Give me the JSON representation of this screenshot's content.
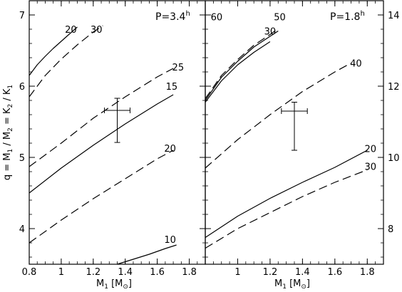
{
  "chart_data": [
    {
      "type": "line",
      "panel": "left",
      "period_label": "P=3.4",
      "period_sup": "h",
      "xlabel": {
        "main": "M",
        "sub": "1",
        "bracket_open": " [M",
        "bracket_sub": "⊙",
        "bracket_close": "]"
      },
      "ylabel": {
        "parts": [
          "q = M",
          "1",
          " / M",
          "2",
          " = K",
          "2",
          " / K",
          "1"
        ]
      },
      "xlim": [
        0.8,
        1.9
      ],
      "ylim": [
        3.5,
        7.2
      ],
      "xticks": [
        "0.8",
        "1",
        "1.2",
        "1.4",
        "1.6",
        "1.8"
      ],
      "xtick_values": [
        0.8,
        1.0,
        1.2,
        1.4,
        1.6,
        1.8
      ],
      "yticks": [
        "4",
        "5",
        "6",
        "7"
      ],
      "ytick_values": [
        4,
        5,
        6,
        7
      ],
      "series": [
        {
          "name": "20",
          "style": "solid",
          "x": [
            0.8,
            0.85,
            0.9,
            0.95,
            1.0,
            1.05,
            1.1
          ],
          "y": [
            6.15,
            6.3,
            6.42,
            6.53,
            6.63,
            6.73,
            6.83
          ]
        },
        {
          "name": "30",
          "style": "dashed",
          "x": [
            0.8,
            0.9,
            1.0,
            1.1,
            1.2,
            1.26
          ],
          "y": [
            5.85,
            6.15,
            6.38,
            6.58,
            6.76,
            6.85
          ]
        },
        {
          "name": "25",
          "style": "dashed",
          "x": [
            0.8,
            1.0,
            1.2,
            1.4,
            1.6,
            1.7
          ],
          "y": [
            4.87,
            5.2,
            5.55,
            5.85,
            6.13,
            6.25
          ]
        },
        {
          "name": "15",
          "style": "solid",
          "x": [
            0.8,
            1.0,
            1.2,
            1.4,
            1.6,
            1.7
          ],
          "y": [
            4.5,
            4.85,
            5.17,
            5.47,
            5.75,
            5.88
          ]
        },
        {
          "name": "20",
          "style": "dashed",
          "x": [
            0.8,
            1.0,
            1.2,
            1.4,
            1.6,
            1.7
          ],
          "y": [
            3.8,
            4.12,
            4.42,
            4.7,
            4.98,
            5.1
          ]
        },
        {
          "name": "10",
          "style": "solid",
          "x": [
            1.35,
            1.45,
            1.55,
            1.65,
            1.72
          ],
          "y": [
            3.5,
            3.57,
            3.64,
            3.72,
            3.77
          ]
        }
      ],
      "labels": [
        {
          "text": "20",
          "x": 1.06,
          "y": 6.8
        },
        {
          "text": "30",
          "x": 1.22,
          "y": 6.8
        },
        {
          "text": "25",
          "x": 1.73,
          "y": 6.27
        },
        {
          "text": "15",
          "x": 1.69,
          "y": 6.0
        },
        {
          "text": "20",
          "x": 1.68,
          "y": 5.13
        },
        {
          "text": "10",
          "x": 1.68,
          "y": 3.85
        }
      ],
      "point": {
        "x": 1.35,
        "y": 5.53,
        "xerr": 0.08,
        "yerr_low": 0.32,
        "yerr_high": 0.3,
        "cross_y": 5.66
      }
    },
    {
      "type": "line",
      "panel": "right",
      "period_label": "P=1.8",
      "period_sup": "h",
      "xlabel": {
        "main": "M",
        "sub": "1",
        "bracket_open": " [M",
        "bracket_sub": "⊙",
        "bracket_close": "]"
      },
      "xlim": [
        0.8,
        1.9
      ],
      "ylim": [
        7.0,
        14.4
      ],
      "xticks": [
        "1",
        "1.2",
        "1.4",
        "1.6",
        "1.8"
      ],
      "xtick_values": [
        1.0,
        1.2,
        1.4,
        1.6,
        1.8
      ],
      "yticks": [
        "8",
        "10",
        "12",
        "14"
      ],
      "ytick_values": [
        8,
        10,
        12,
        14
      ],
      "series": [
        {
          "name": "60",
          "style": "solid",
          "x": [
            0.8,
            0.9,
            1.0,
            1.1,
            1.2,
            1.25
          ],
          "y": [
            11.6,
            12.25,
            12.7,
            13.1,
            13.4,
            13.55
          ]
        },
        {
          "name": "50",
          "style": "dashed",
          "x": [
            0.8,
            0.9,
            1.0,
            1.1,
            1.2,
            1.25
          ],
          "y": [
            11.65,
            12.3,
            12.75,
            13.15,
            13.45,
            13.62
          ]
        },
        {
          "name": "30",
          "style": "solid",
          "x": [
            0.8,
            0.9,
            1.0,
            1.1,
            1.2
          ],
          "y": [
            11.55,
            12.15,
            12.6,
            12.95,
            13.25
          ]
        },
        {
          "name": "40",
          "style": "dashed",
          "x": [
            0.8,
            1.0,
            1.2,
            1.4,
            1.6,
            1.7
          ],
          "y": [
            9.7,
            10.5,
            11.2,
            11.85,
            12.4,
            12.65
          ]
        },
        {
          "name": "20",
          "style": "solid",
          "x": [
            0.8,
            1.0,
            1.2,
            1.4,
            1.6,
            1.8
          ],
          "y": [
            7.75,
            8.35,
            8.85,
            9.3,
            9.72,
            10.2
          ]
        },
        {
          "name": "30",
          "style": "dashed",
          "x": [
            0.8,
            1.0,
            1.2,
            1.4,
            1.6,
            1.8
          ],
          "y": [
            7.45,
            8.0,
            8.45,
            8.9,
            9.3,
            9.65
          ]
        }
      ],
      "labels": [
        {
          "text": "60",
          "x": 0.87,
          "y": 13.95
        },
        {
          "text": "50",
          "x": 1.26,
          "y": 13.95
        },
        {
          "text": "30",
          "x": 1.2,
          "y": 13.55
        },
        {
          "text": "40",
          "x": 1.73,
          "y": 12.65
        },
        {
          "text": "20",
          "x": 1.82,
          "y": 10.25
        },
        {
          "text": "30",
          "x": 1.82,
          "y": 9.75
        }
      ],
      "point": {
        "x": 1.35,
        "y": 10.9,
        "xerr": 0.08,
        "yerr_low": 0.7,
        "yerr_high": 0.65,
        "cross_y": 11.3
      }
    }
  ]
}
